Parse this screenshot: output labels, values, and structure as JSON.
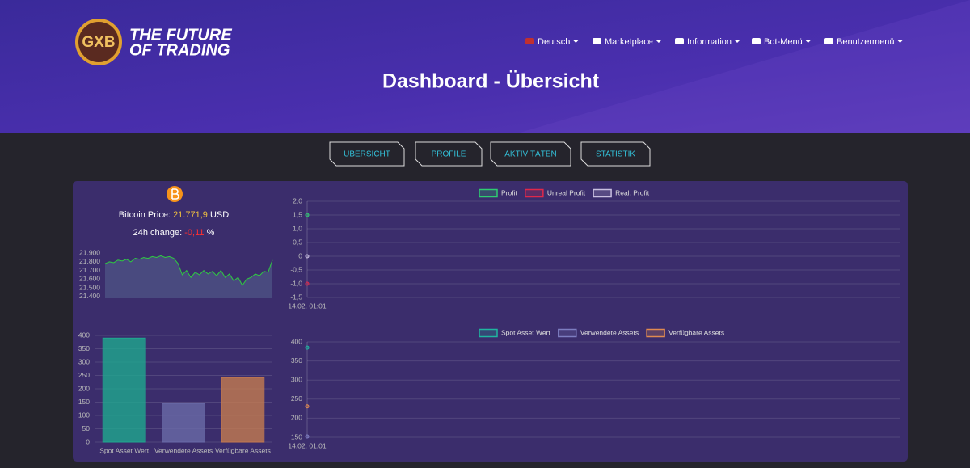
{
  "header": {
    "logo_badge": "GXB",
    "logo_text": [
      "THE FUTURE",
      "OF TRADING"
    ],
    "nav": [
      "Deutsch",
      "Marketplace",
      "Information",
      "Bot-Menü",
      "Benutzermenü"
    ],
    "title": "Dashboard - Übersicht"
  },
  "tabs": [
    "ÜBERSICHT",
    "PROFILE",
    "AKTIVITÄTEN",
    "STATISTIK"
  ],
  "bitcoin": {
    "price_label": "Bitcoin Price:",
    "price": "21.771,9",
    "currency": "USD",
    "change_label": "24h change:",
    "change": "-0,11",
    "change_unit": "%"
  },
  "chart_data": [
    {
      "type": "area",
      "color": "#2ecc40",
      "values": [
        21780,
        21800,
        21790,
        21820,
        21810,
        21830,
        21800,
        21840,
        21830,
        21850,
        21840,
        21860,
        21850,
        21870,
        21850,
        21860,
        21840,
        21780,
        21650,
        21700,
        21620,
        21680,
        21650,
        21700,
        21660,
        21690,
        21640,
        21700,
        21620,
        21660,
        21580,
        21620,
        21530,
        21600,
        21620,
        21660,
        21640,
        21690,
        21680,
        21820
      ],
      "ylim": [
        21380,
        21920
      ],
      "yticks": [
        {
          "value": 21900,
          "label": "21.900"
        },
        {
          "value": 21800,
          "label": "21.800"
        },
        {
          "value": 21700,
          "label": "21.700"
        },
        {
          "value": 21600,
          "label": "21.600"
        },
        {
          "value": 21500,
          "label": "21.500"
        },
        {
          "value": 21400,
          "label": "21.400"
        }
      ]
    },
    {
      "type": "line",
      "categories": [
        "14.02. 01:01"
      ],
      "series": [
        {
          "name": "Profit",
          "color": "#2ecc71",
          "values": [
            1.5
          ]
        },
        {
          "name": "Unreal Profit",
          "color": "#e0284a",
          "values": [
            -1.0
          ]
        },
        {
          "name": "Real. Profit",
          "color": "#c9bfe0",
          "values": [
            0
          ]
        }
      ],
      "ylim": [
        -1.5,
        2.0
      ],
      "yticks": [
        {
          "value": 2.0,
          "label": "2,0"
        },
        {
          "value": 1.5,
          "label": "1,5"
        },
        {
          "value": 1.0,
          "label": "1,0"
        },
        {
          "value": 0.5,
          "label": "0,5"
        },
        0,
        {
          "value": -0.5,
          "label": "-0,5"
        },
        {
          "value": -1.0,
          "label": "-1,0"
        },
        {
          "value": -1.5,
          "label": "-1,5"
        }
      ],
      "grid": true
    },
    {
      "type": "bar",
      "categories": [
        "Spot Asset Wert",
        "Verwendete Assets",
        "Verfügbare Assets"
      ],
      "values": [
        390,
        145,
        242
      ],
      "colors": [
        "#1fa88f",
        "#6a6aa8",
        "#c47a50"
      ],
      "ylim": [
        0,
        400
      ],
      "yticks": [
        400,
        350,
        300,
        250,
        200,
        150,
        100,
        50,
        0
      ],
      "grid": true
    },
    {
      "type": "line",
      "categories": [
        "14.02. 01:01"
      ],
      "series": [
        {
          "name": "Spot Asset Wert",
          "color": "#1fb5a0",
          "values": [
            385
          ]
        },
        {
          "name": "Verwendete Assets",
          "color": "#7d7dc0",
          "values": [
            152
          ]
        },
        {
          "name": "Verfügbare Assets",
          "color": "#e08a50",
          "values": [
            231
          ]
        }
      ],
      "ylim": [
        150,
        400
      ],
      "yticks": [
        400,
        350,
        300,
        250,
        200,
        150
      ],
      "grid": true
    }
  ]
}
